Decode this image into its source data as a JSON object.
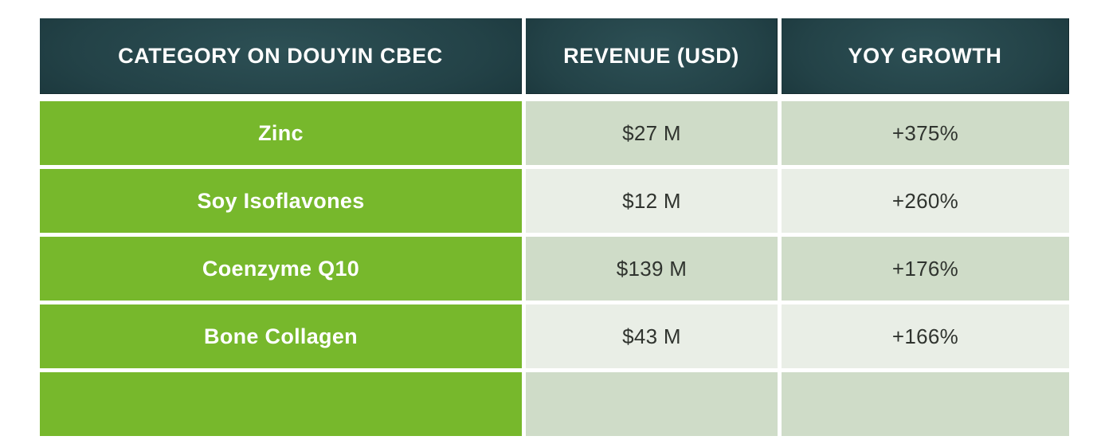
{
  "chart_data": {
    "type": "table",
    "title": "",
    "columns": [
      "CATEGORY ON DOUYIN CBEC",
      "REVENUE (USD)",
      "YOY GROWTH"
    ],
    "rows": [
      [
        "Zinc",
        "$27 M",
        "+375%"
      ],
      [
        "Soy Isoflavones",
        "$12 M",
        "+260%"
      ],
      [
        "Coenzyme Q10",
        "$139 M",
        "+176%"
      ],
      [
        "Bone Collagen",
        "$43 M",
        "+166%"
      ]
    ],
    "revenue_usd_millions": [
      27,
      12,
      139,
      43
    ],
    "yoy_growth_percent": [
      375,
      260,
      176,
      166
    ],
    "layout_hints": {
      "partial_fifth_row_visible_at_bottom": true,
      "row_shading_alternates": true
    }
  },
  "colors": {
    "header_bg_center": "#2d5055",
    "header_bg_edge": "#102428",
    "header_text": "#ffffff",
    "category_green": "#77b82c",
    "category_text": "#ffffff",
    "row_shade_dark": "#cfdcc8",
    "row_shade_light": "#e9eee6",
    "value_text": "#30342f",
    "page_bg": "#ffffff"
  }
}
